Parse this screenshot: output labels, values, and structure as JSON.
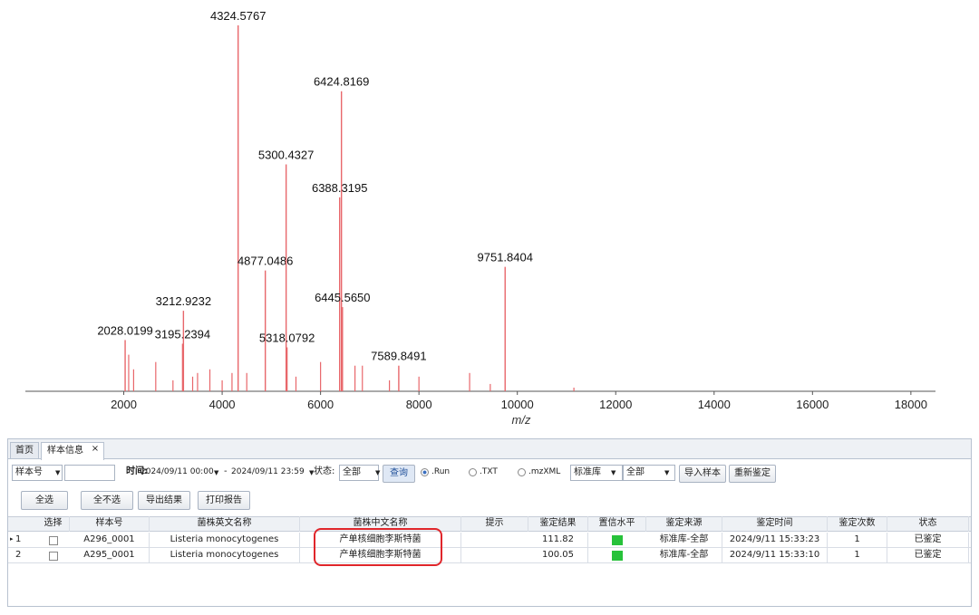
{
  "chart_data": {
    "type": "spectrum",
    "xlabel": "m/z",
    "color": "#e8676b",
    "xlim": [
      0,
      18500
    ],
    "xticks": [
      2000,
      4000,
      6000,
      8000,
      10000,
      12000,
      14000,
      16000,
      18000
    ],
    "peaks": {
      "x": [
        2028.0199,
        3195.2394,
        3212.9232,
        4324.5767,
        4877.0486,
        5300.4327,
        5318.0792,
        6388.3195,
        6424.8169,
        6445.565,
        7589.8491,
        9751.8404
      ],
      "values": [
        14,
        13,
        22,
        100,
        33,
        62,
        12,
        53,
        82,
        23,
        7,
        34
      ],
      "x_labels": [
        "2028.0199",
        "3195.2394",
        "3212.9232",
        "4324.5767",
        "4877.0486",
        "5300.4327",
        "5318.0792",
        "6388.3195",
        "6424.8169",
        "6445.5650",
        "7589.8491",
        "9751.8404"
      ]
    },
    "minor_peaks": {
      "x": [
        2100,
        2200,
        2650,
        3000,
        3400,
        3500,
        3750,
        4000,
        4200,
        4500,
        5500,
        6000,
        6700,
        6850,
        7400,
        8000,
        9030,
        9450,
        11150
      ],
      "values": [
        10,
        6,
        8,
        3,
        4,
        5,
        6,
        3,
        5,
        5,
        4,
        8,
        7,
        7,
        3,
        4,
        5,
        2,
        1
      ]
    }
  },
  "tabs": [
    "首页",
    "样本信息"
  ],
  "tab_close": "×",
  "toolbar": {
    "sample_field": "样本号",
    "time_label": "时间:",
    "time_from": "2024/09/11 00:00",
    "time_sep": "-",
    "time_to": "2024/09/11 23:59",
    "status_label": "状态:",
    "status_value": "全部",
    "query": "查询",
    "formats": [
      ".Run",
      ".TXT",
      ".mzXML"
    ],
    "library": "标准库",
    "library_scope": "全部",
    "import": "导入样本",
    "reidentify": "重新鉴定"
  },
  "actions": [
    "全选",
    "全不选",
    "导出结果",
    "打印报告"
  ],
  "table": {
    "headers": [
      "选择",
      "样本号",
      "菌株英文名称",
      "菌株中文名称",
      "提示",
      "鉴定结果",
      "置信水平",
      "鉴定来源",
      "鉴定时间",
      "鉴定次数",
      "状态"
    ],
    "rows": [
      {
        "index": "1",
        "sample": "A296_0001",
        "english": "Listeria monocytogenes",
        "chinese": "产单核细胞李斯特菌",
        "score": "111.82",
        "source": "标准库-全部",
        "time": "2024/9/11 15:33:23",
        "count": "1",
        "status": "已鉴定"
      },
      {
        "index": "2",
        "sample": "A295_0001",
        "english": "Listeria monocytogenes",
        "chinese": "产单核细胞李斯特菌",
        "score": "100.05",
        "source": "标准库-全部",
        "time": "2024/9/11 15:33:10",
        "count": "1",
        "status": "已鉴定"
      }
    ]
  }
}
